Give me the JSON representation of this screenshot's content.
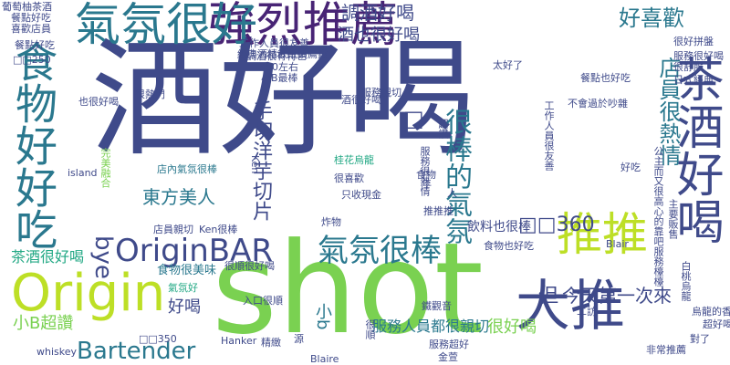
{
  "palette": {
    "navy": "#3f4a8a",
    "purple": "#482475",
    "teal": "#2a788e",
    "green": "#22a884",
    "lime": "#7ad151",
    "yellow": "#bddf26"
  },
  "words": [
    {
      "text": "酒好喝",
      "color": "#3f4a8a"
    },
    {
      "text": "shot",
      "color": "#7ad151"
    },
    {
      "text": "強烈推薦",
      "color": "#482475"
    },
    {
      "text": "氣氛很好",
      "color": "#2a788e"
    },
    {
      "text": "食物好好吃",
      "color": "#2a788e"
    },
    {
      "text": "Origin",
      "color": "#bddf26"
    },
    {
      "text": "茶酒好喝",
      "color": "#3f4a8a"
    },
    {
      "text": "大推",
      "color": "#3f4a8a"
    },
    {
      "text": "推推",
      "color": "#bddf26"
    },
    {
      "text": "OriginBAR",
      "color": "#3f4a8a"
    },
    {
      "text": "氣氛很棒",
      "color": "#2a788e"
    },
    {
      "text": "很棒的氣氛",
      "color": "#2a788e"
    },
    {
      "text": "店員很熱情",
      "color": "#2a788e"
    },
    {
      "text": "手切洋芋切片",
      "color": "#3f4a8a"
    },
    {
      "text": "Bartender",
      "color": "#2a788e"
    },
    {
      "text": "調酒好喝",
      "color": "#3f4a8a"
    },
    {
      "text": "酒也很好喝",
      "color": "#3f4a8a"
    },
    {
      "text": "好喜歡",
      "color": "#2a788e"
    },
    {
      "text": "東方美人",
      "color": "#2a788e"
    },
    {
      "text": "□□360",
      "color": "#3f4a8a"
    },
    {
      "text": "bye",
      "color": "#3f4a8a"
    },
    {
      "text": "小B超讚",
      "color": "#7ad151"
    },
    {
      "text": "今天第一次來",
      "color": "#3f4a8a"
    },
    {
      "text": "很好喝",
      "color": "#7ad151"
    },
    {
      "text": "服務人員都很親切",
      "color": "#2a788e"
    },
    {
      "text": "好喝",
      "color": "#3f4a8a"
    },
    {
      "text": "茶酒很好喝",
      "color": "#22a884"
    },
    {
      "text": "飲料也很棒",
      "color": "#3f4a8a"
    },
    {
      "text": "食物很美味",
      "color": "#2a788e"
    },
    {
      "text": "□",
      "color": "#3f4a8a"
    },
    {
      "text": "但",
      "color": "#3f4a8a"
    },
    {
      "text": "小b",
      "color": "#2a788e"
    },
    {
      "text": "餐點好吃",
      "color": "#3f4a8a"
    },
    {
      "text": "葡萄柚茶酒",
      "color": "#3f4a8a"
    },
    {
      "text": "□□250",
      "color": "#3f4a8a"
    },
    {
      "text": "酒很好喝",
      "color": "#3f4a8a"
    },
    {
      "text": "服務親切",
      "color": "#3f4a8a"
    },
    {
      "text": "餐點也好吃",
      "color": "#3f4a8a"
    },
    {
      "text": "很好拼盤",
      "color": "#3f4a8a"
    },
    {
      "text": "服務很好喝",
      "color": "#3f4a8a"
    },
    {
      "text": "超讚",
      "color": "#3f4a8a"
    },
    {
      "text": "不會過於吵雜",
      "color": "#3f4a8a"
    },
    {
      "text": "350左右",
      "color": "#3f4a8a"
    },
    {
      "text": "小B最棒",
      "color": "#3f4a8a"
    },
    {
      "text": "很熱門",
      "color": "#3f4a8a"
    },
    {
      "text": "也很好喝",
      "color": "#3f4a8a"
    },
    {
      "text": "完美融合",
      "color": "#7ad151"
    },
    {
      "text": "店內氣氛很棒",
      "color": "#2a788e"
    },
    {
      "text": "桂花烏龍",
      "color": "#22a884"
    },
    {
      "text": "服務很熱情",
      "color": "#3f4a8a"
    },
    {
      "text": "island",
      "color": "#3f4a8a"
    },
    {
      "text": "Ken",
      "color": "#3f4a8a"
    },
    {
      "text": "食物",
      "color": "#3f4a8a"
    },
    {
      "text": "好吃",
      "color": "#3f4a8a"
    },
    {
      "text": "很喜歡",
      "color": "#3f4a8a"
    },
    {
      "text": "只收現金",
      "color": "#3f4a8a"
    },
    {
      "text": "推推推",
      "color": "#3f4a8a"
    },
    {
      "text": "店員親切",
      "color": "#3f4a8a"
    },
    {
      "text": "Ken很棒",
      "color": "#3f4a8a"
    },
    {
      "text": "炸物",
      "color": "#3f4a8a"
    },
    {
      "text": "食物也好吃",
      "color": "#3f4a8a"
    },
    {
      "text": "Blair",
      "color": "#3f4a8a"
    },
    {
      "text": "很順很好喝",
      "color": "#3f4a8a"
    },
    {
      "text": "入口很順",
      "color": "#3f4a8a"
    },
    {
      "text": "氣氛好",
      "color": "#22a884"
    },
    {
      "text": "□□350",
      "color": "#3f4a8a"
    },
    {
      "text": "Hanker",
      "color": "#3f4a8a"
    },
    {
      "text": "Blaire",
      "color": "#3f4a8a"
    },
    {
      "text": "whiskey",
      "color": "#3f4a8a"
    },
    {
      "text": "鐵觀音",
      "color": "#3f4a8a"
    },
    {
      "text": "服務超好",
      "color": "#3f4a8a"
    },
    {
      "text": "金萱",
      "color": "#3f4a8a"
    },
    {
      "text": "非常推薦",
      "color": "#3f4a8a"
    },
    {
      "text": "對了",
      "color": "#3f4a8a"
    },
    {
      "text": "烏龍的香味",
      "color": "#3f4a8a"
    },
    {
      "text": "超好喝",
      "color": "#3f4a8a"
    },
    {
      "text": "太好了",
      "color": "#3f4a8a"
    },
    {
      "text": "經典酒精飲紙鑽薦鐵",
      "color": "#3f4a8a"
    },
    {
      "text": "工作人員很友善",
      "color": "#3f4a8a"
    },
    {
      "text": "餐點好吃",
      "color": "#3f4a8a"
    },
    {
      "text": "喜歡店員",
      "color": "#3f4a8a"
    },
    {
      "text": "主要販售",
      "color": "#3f4a8a"
    },
    {
      "text": "很舒服",
      "color": "#3f4a8a"
    },
    {
      "text": "日式經典",
      "color": "#3f4a8a"
    },
    {
      "text": "精緻",
      "color": "#3f4a8a"
    },
    {
      "text": "調酒很有特色",
      "color": "#3f4a8a"
    },
    {
      "text": "白桃烏龍",
      "color": "#3f4a8a"
    },
    {
      "text": "公主而又很高心的靠吧服務檯檯",
      "color": "#3f4a8a"
    },
    {
      "text": "工作人員很友善",
      "color": "#3f4a8a"
    },
    {
      "text": "人",
      "color": "#3f4a8a"
    },
    {
      "text": "年",
      "color": "#3f4a8a"
    },
    {
      "text": "二訪",
      "color": "#3f4a8a"
    },
    {
      "text": "很順",
      "color": "#3f4a8a"
    },
    {
      "text": "源",
      "color": "#3f4a8a"
    }
  ]
}
